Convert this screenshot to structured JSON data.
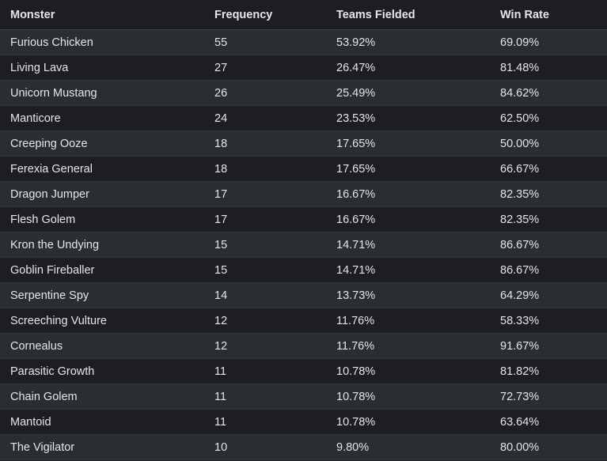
{
  "table": {
    "columns": [
      "Monster",
      "Frequency",
      "Teams Fielded",
      "Win Rate"
    ],
    "rows": [
      [
        "Furious Chicken",
        55,
        "53.92%",
        "69.09%"
      ],
      [
        "Living Lava",
        27,
        "26.47%",
        "81.48%"
      ],
      [
        "Unicorn Mustang",
        26,
        "25.49%",
        "84.62%"
      ],
      [
        "Manticore",
        24,
        "23.53%",
        "62.50%"
      ],
      [
        "Creeping Ooze",
        18,
        "17.65%",
        "50.00%"
      ],
      [
        "Ferexia General",
        18,
        "17.65%",
        "66.67%"
      ],
      [
        "Dragon Jumper",
        17,
        "16.67%",
        "82.35%"
      ],
      [
        "Flesh Golem",
        17,
        "16.67%",
        "82.35%"
      ],
      [
        "Kron the Undying",
        15,
        "14.71%",
        "86.67%"
      ],
      [
        "Goblin Fireballer",
        15,
        "14.71%",
        "86.67%"
      ],
      [
        "Serpentine Spy",
        14,
        "13.73%",
        "64.29%"
      ],
      [
        "Screeching Vulture",
        12,
        "11.76%",
        "58.33%"
      ],
      [
        "Cornealus",
        12,
        "11.76%",
        "91.67%"
      ],
      [
        "Parasitic Growth",
        11,
        "10.78%",
        "81.82%"
      ],
      [
        "Chain Golem",
        11,
        "10.78%",
        "72.73%"
      ],
      [
        "Mantoid",
        11,
        "10.78%",
        "63.64%"
      ],
      [
        "The Vigilator",
        10,
        "9.80%",
        "80.00%"
      ]
    ]
  }
}
